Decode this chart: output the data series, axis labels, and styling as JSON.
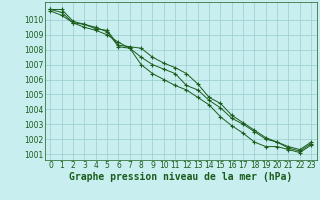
{
  "x": [
    0,
    1,
    2,
    3,
    4,
    5,
    6,
    7,
    8,
    9,
    10,
    11,
    12,
    13,
    14,
    15,
    16,
    17,
    18,
    19,
    20,
    21,
    22,
    23
  ],
  "line1": [
    1010.7,
    1010.7,
    1009.9,
    1009.7,
    1009.4,
    1009.3,
    1008.3,
    1008.2,
    1008.1,
    1007.5,
    1007.1,
    1006.8,
    1006.4,
    1005.7,
    1004.8,
    1004.4,
    1003.6,
    1003.1,
    1002.6,
    1002.1,
    1001.8,
    1001.5,
    1001.3,
    1001.8
  ],
  "line2": [
    1010.7,
    1010.5,
    1009.8,
    1009.7,
    1009.5,
    1009.2,
    1008.2,
    1008.1,
    1007.5,
    1007.0,
    1006.7,
    1006.4,
    1005.6,
    1005.3,
    1004.6,
    1004.1,
    1003.4,
    1003.0,
    1002.5,
    1002.0,
    1001.8,
    1001.4,
    1001.2,
    1001.7
  ],
  "line3": [
    1010.6,
    1010.3,
    1009.8,
    1009.5,
    1009.3,
    1009.0,
    1008.5,
    1008.1,
    1007.0,
    1006.4,
    1006.0,
    1005.6,
    1005.3,
    1004.8,
    1004.3,
    1003.5,
    1002.9,
    1002.4,
    1001.8,
    1001.5,
    1001.5,
    1001.3,
    1001.1,
    1001.6
  ],
  "bg_color": "#c8eef0",
  "grid_color": "#99cccc",
  "line_color": "#1a5c1a",
  "title": "Graphe pression niveau de la mer (hPa)",
  "ylim_min": 1000.6,
  "ylim_max": 1011.2,
  "yticks": [
    1001,
    1002,
    1003,
    1004,
    1005,
    1006,
    1007,
    1008,
    1009,
    1010
  ],
  "xticks": [
    0,
    1,
    2,
    3,
    4,
    5,
    6,
    7,
    8,
    9,
    10,
    11,
    12,
    13,
    14,
    15,
    16,
    17,
    18,
    19,
    20,
    21,
    22,
    23
  ],
  "tick_fontsize": 5.5,
  "xlabel_fontsize": 7.0,
  "marker": "+",
  "markersize": 3.5,
  "linewidth": 0.7
}
